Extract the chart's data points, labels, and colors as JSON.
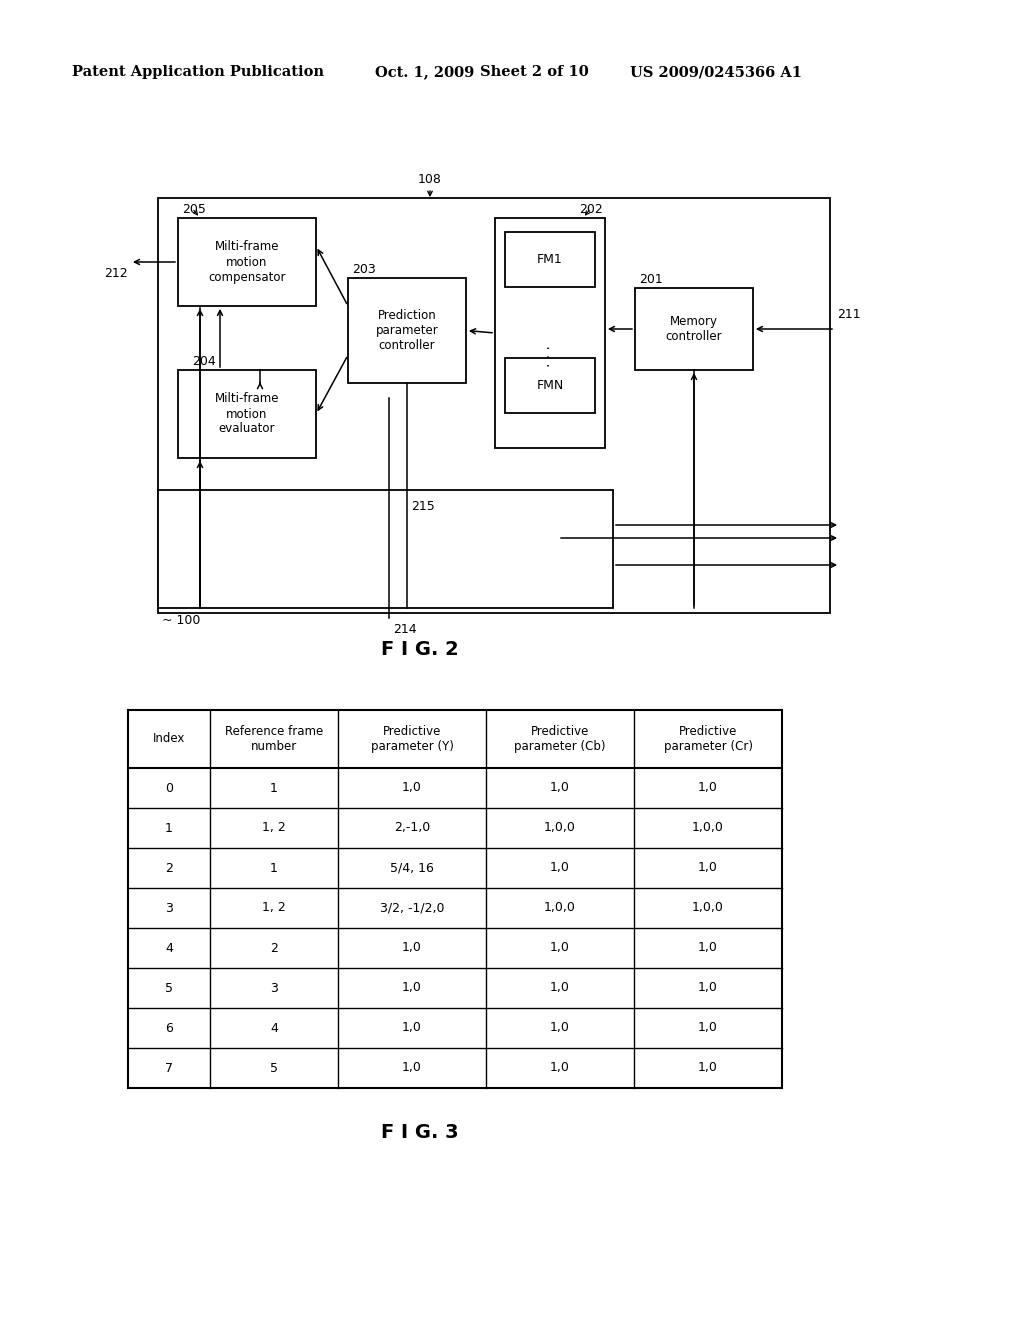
{
  "bg_color": "#ffffff",
  "header_text": "Patent Application Publication",
  "header_date": "Oct. 1, 2009",
  "header_sheet": "Sheet 2 of 10",
  "header_patent": "US 2009/0245366 A1",
  "fig2_label": "F I G. 2",
  "fig3_label": "F I G. 3",
  "table_headers": [
    "Index",
    "Reference frame\nnumber",
    "Predictive\nparameter (Y)",
    "Predictive\nparameter (Cb)",
    "Predictive\nparameter (Cr)"
  ],
  "table_rows": [
    [
      "0",
      "1",
      "1,0",
      "1,0",
      "1,0"
    ],
    [
      "1",
      "1, 2",
      "2,-1,0",
      "1,0,0",
      "1,0,0"
    ],
    [
      "2",
      "1",
      "5/4, 16",
      "1,0",
      "1,0"
    ],
    [
      "3",
      "1, 2",
      "3/2, -1/2,0",
      "1,0,0",
      "1,0,0"
    ],
    [
      "4",
      "2",
      "1,0",
      "1,0",
      "1,0"
    ],
    [
      "5",
      "3",
      "1,0",
      "1,0",
      "1,0"
    ],
    [
      "6",
      "4",
      "1,0",
      "1,0",
      "1,0"
    ],
    [
      "7",
      "5",
      "1,0",
      "1,0",
      "1,0"
    ]
  ]
}
